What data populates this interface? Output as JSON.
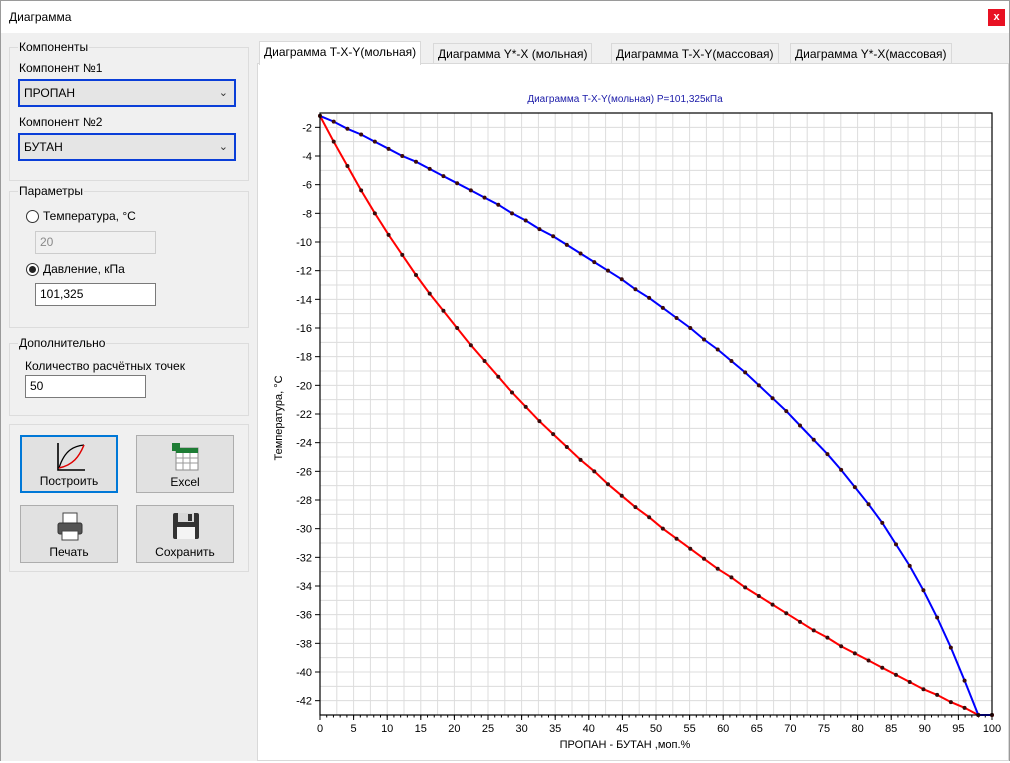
{
  "window": {
    "title": "Диаграмма",
    "close_label": "x"
  },
  "components": {
    "group_title": "Компоненты",
    "comp1_label": "Компонент №1",
    "comp1_value": "ПРОПАН",
    "comp2_label": "Компонент №2",
    "comp2_value": "БУТАН"
  },
  "params": {
    "group_title": "Параметры",
    "temp_label": "Температура, °С",
    "temp_value": "20",
    "temp_checked": false,
    "pressure_label": "Давление, кПа",
    "pressure_value": "101,325",
    "pressure_checked": true
  },
  "extra": {
    "group_title": "Дополнительно",
    "points_label": "Количество расчётных точек",
    "points_value": "50"
  },
  "buttons": {
    "build": "Построить",
    "excel": "Excel",
    "print": "Печать",
    "save": "Сохранить"
  },
  "tabs": [
    {
      "label": "Диаграмма T-X-Y(мольная)",
      "active": true
    },
    {
      "label": "Диаграмма Y*-X (мольная)",
      "active": false
    },
    {
      "label": "Диаграмма T-X-Y(массовая)",
      "active": false
    },
    {
      "label": "Диаграмма Y*-X(массовая)",
      "active": false
    }
  ],
  "colors": {
    "accent": "#0a3ed8",
    "liquid": "#ff0000",
    "vapor": "#0000ff",
    "title": "#1a1aa8"
  },
  "chart_data": {
    "type": "line",
    "title": "Диаграмма T-X-Y(мольная) P=101,325кПа",
    "xlabel": "ПРОПАН - БУТАН ,моп.%",
    "ylabel": "Температура, °С",
    "xlim": [
      0,
      100
    ],
    "ylim": [
      -43,
      -1
    ],
    "xticks": [
      0,
      5,
      10,
      15,
      20,
      25,
      30,
      35,
      40,
      45,
      50,
      55,
      60,
      65,
      70,
      75,
      80,
      85,
      90,
      95,
      100
    ],
    "yticks": [
      -2,
      -4,
      -6,
      -8,
      -10,
      -12,
      -14,
      -16,
      -18,
      -20,
      -22,
      -24,
      -26,
      -28,
      -30,
      -32,
      -34,
      -36,
      -38,
      -40,
      -42
    ],
    "grid": true,
    "series": [
      {
        "color": "#ff0000",
        "x": [
          0,
          2.0408,
          4.0816,
          6.1224,
          8.1633,
          10.2041,
          12.2449,
          14.2857,
          16.3265,
          18.3673,
          20.4082,
          22.449,
          24.4898,
          26.5306,
          28.5714,
          30.6122,
          32.6531,
          34.6939,
          36.7347,
          38.7755,
          40.8163,
          42.8571,
          44.898,
          46.9388,
          48.9796,
          51.0204,
          53.0612,
          55.102,
          57.1429,
          59.1837,
          61.2245,
          63.2653,
          65.3061,
          67.3469,
          69.3878,
          71.4286,
          73.4694,
          75.5102,
          77.551,
          79.5918,
          81.6327,
          83.6735,
          85.7143,
          87.7551,
          89.7959,
          91.8367,
          93.8776,
          95.9184,
          97.9592,
          100
        ],
        "y": [
          -1.2,
          -3.0,
          -4.7,
          -6.4,
          -8.0,
          -9.5,
          -10.9,
          -12.3,
          -13.6,
          -14.8,
          -16.0,
          -17.2,
          -18.3,
          -19.4,
          -20.5,
          -21.5,
          -22.5,
          -23.4,
          -24.3,
          -25.2,
          -26.0,
          -26.9,
          -27.7,
          -28.5,
          -29.2,
          -30.0,
          -30.7,
          -31.4,
          -32.1,
          -32.8,
          -33.4,
          -34.1,
          -34.7,
          -35.3,
          -35.9,
          -36.5,
          -37.1,
          -37.6,
          -38.2,
          -38.7,
          -39.2,
          -39.7,
          -40.2,
          -40.7,
          -41.2,
          -41.6,
          -42.1,
          -42.5,
          -43.0,
          -43.0
        ]
      },
      {
        "color": "#0000ff",
        "x": [
          0,
          2.0408,
          4.0816,
          6.1224,
          8.1633,
          10.2041,
          12.2449,
          14.2857,
          16.3265,
          18.3673,
          20.4082,
          22.449,
          24.4898,
          26.5306,
          28.5714,
          30.6122,
          32.6531,
          34.6939,
          36.7347,
          38.7755,
          40.8163,
          42.8571,
          44.898,
          46.9388,
          48.9796,
          51.0204,
          53.0612,
          55.102,
          57.1429,
          59.1837,
          61.2245,
          63.2653,
          65.3061,
          67.3469,
          69.3878,
          71.4286,
          73.4694,
          75.5102,
          77.551,
          79.5918,
          81.6327,
          83.6735,
          85.7143,
          87.7551,
          89.7959,
          91.8367,
          93.8776,
          95.9184,
          97.9592,
          100
        ],
        "y": [
          -1.2,
          -1.6,
          -2.1,
          -2.5,
          -3.0,
          -3.5,
          -4.0,
          -4.4,
          -4.9,
          -5.4,
          -5.9,
          -6.4,
          -6.9,
          -7.4,
          -8.0,
          -8.5,
          -9.1,
          -9.6,
          -10.2,
          -10.8,
          -11.4,
          -12.0,
          -12.6,
          -13.3,
          -13.9,
          -14.6,
          -15.3,
          -16.0,
          -16.8,
          -17.5,
          -18.3,
          -19.1,
          -20.0,
          -20.9,
          -21.8,
          -22.8,
          -23.8,
          -24.8,
          -25.9,
          -27.1,
          -28.3,
          -29.6,
          -31.1,
          -32.6,
          -34.3,
          -36.2,
          -38.3,
          -40.6,
          -43.0,
          -43.0
        ]
      }
    ]
  }
}
